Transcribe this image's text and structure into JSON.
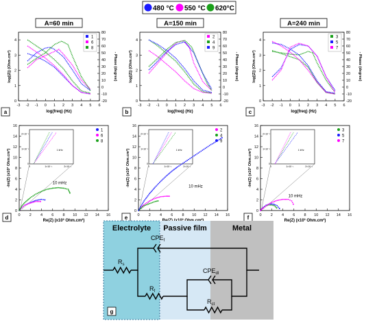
{
  "legend_top": [
    {
      "label": "480 °C",
      "color": "#1a1aff"
    },
    {
      "label": "550 °C",
      "color": "#ff00ff"
    },
    {
      "label": "620°C",
      "color": "#1aa01a"
    }
  ],
  "panel_titles": [
    "A=60 min",
    "A=150 min",
    "A=240 min"
  ],
  "panel_letters": [
    "a",
    "b",
    "c",
    "d",
    "e",
    "f",
    "g"
  ],
  "bode": {
    "xlabel": "log(freq) (Hz)",
    "ylabel": "log(|Z|) (Ohm.cm²)",
    "y2label": "- Phase (degree)",
    "xticks": [
      "-3",
      "-2",
      "-1",
      "0",
      "1",
      "2",
      "3",
      "4",
      "5",
      "6"
    ],
    "yticks": [
      "0",
      "1",
      "2",
      "3",
      "4"
    ],
    "y2ticks": [
      "-20",
      "-10",
      "0",
      "10",
      "20",
      "30",
      "40",
      "50",
      "60",
      "70",
      "80"
    ],
    "xlim": [
      -3,
      6
    ],
    "ylim": [
      0,
      4.5
    ],
    "y2lim": [
      -20,
      80
    ]
  },
  "nyquist": {
    "xlabel": "Re(Z) (x10³ Ohm.cm²)",
    "ylabel": "-Im(Z) (x10³ Ohm.cm²)",
    "xticks": [
      "0",
      "2",
      "4",
      "6",
      "8",
      "10",
      "12",
      "14",
      "16"
    ],
    "yticks": [
      "0",
      "2",
      "4",
      "6",
      "8",
      "10",
      "12",
      "14",
      "16"
    ],
    "xlim": [
      0,
      16
    ],
    "ylim": [
      0,
      16
    ],
    "inset_xticks": [
      "0",
      "1×10⁻¹",
      "2×10⁻¹"
    ],
    "inset_yticks": [
      "0",
      "1×10⁻¹",
      "2×10⁻¹"
    ],
    "inset_label": "1 kHz",
    "annotation": "10 mHz"
  },
  "chart_data": [
    {
      "type": "line",
      "panel": "a",
      "series": [
        {
          "name": "1",
          "color": "#1a1aff",
          "mod": [
            [
              -2,
              3.1
            ],
            [
              -1,
              2.9
            ],
            [
              0,
              2.6
            ],
            [
              1,
              2.2
            ],
            [
              2,
              1.6
            ],
            [
              3,
              1.0
            ],
            [
              4,
              0.55
            ],
            [
              5,
              0.45
            ]
          ],
          "phase": [
            [
              -2,
              38
            ],
            [
              -1,
              50
            ],
            [
              0,
              57
            ],
            [
              0.5,
              58
            ],
            [
              1,
              55
            ],
            [
              2,
              44
            ],
            [
              3,
              25
            ],
            [
              4,
              5
            ],
            [
              5,
              -5
            ]
          ]
        },
        {
          "name": "6",
          "color": "#ff00ff",
          "mod": [
            [
              -2,
              3.6
            ],
            [
              -1,
              3.2
            ],
            [
              0,
              2.8
            ],
            [
              1,
              2.3
            ],
            [
              2,
              1.7
            ],
            [
              3,
              1.0
            ],
            [
              4,
              0.55
            ],
            [
              5,
              0.45
            ]
          ],
          "phase": [
            [
              -2,
              28
            ],
            [
              -1,
              40
            ],
            [
              0,
              46
            ],
            [
              1,
              52
            ],
            [
              1.5,
              55
            ],
            [
              2,
              48
            ],
            [
              3,
              32
            ],
            [
              4,
              10
            ],
            [
              5,
              -3
            ]
          ]
        },
        {
          "name": "8",
          "color": "#1aa01a",
          "mod": [
            [
              -2,
              4.0
            ],
            [
              -1,
              3.6
            ],
            [
              0,
              3.2
            ],
            [
              1,
              2.7
            ],
            [
              2,
              2.1
            ],
            [
              3,
              1.3
            ],
            [
              4,
              0.65
            ],
            [
              5,
              0.5
            ]
          ],
          "phase": [
            [
              -2,
              33
            ],
            [
              -1,
              42
            ],
            [
              0,
              50
            ],
            [
              1,
              62
            ],
            [
              1.8,
              67
            ],
            [
              2.5,
              62
            ],
            [
              3,
              45
            ],
            [
              4,
              15
            ],
            [
              5,
              -5
            ]
          ]
        }
      ]
    },
    {
      "type": "line",
      "panel": "b",
      "series": [
        {
          "name": "2",
          "color": "#ff00ff",
          "mod": [
            [
              -2,
              3.3
            ],
            [
              -1,
              2.9
            ],
            [
              0,
              2.4
            ],
            [
              1,
              1.9
            ],
            [
              2,
              1.3
            ],
            [
              3,
              0.8
            ],
            [
              4,
              0.55
            ],
            [
              5,
              0.5
            ]
          ],
          "phase": [
            [
              -2,
              20
            ],
            [
              -1,
              35
            ],
            [
              0,
              50
            ],
            [
              1,
              64
            ],
            [
              1.8,
              68
            ],
            [
              2.5,
              58
            ],
            [
              3,
              35
            ],
            [
              4,
              8
            ],
            [
              5,
              -5
            ]
          ]
        },
        {
          "name": "4",
          "color": "#1aa01a",
          "mod": [
            [
              -2,
              4.0
            ],
            [
              -1,
              3.6
            ],
            [
              0,
              3.1
            ],
            [
              1,
              2.6
            ],
            [
              2,
              1.9
            ],
            [
              3,
              1.1
            ],
            [
              4,
              0.6
            ],
            [
              5,
              0.5
            ]
          ],
          "phase": [
            [
              -2,
              30
            ],
            [
              -1,
              42
            ],
            [
              0,
              55
            ],
            [
              1,
              65
            ],
            [
              2,
              68
            ],
            [
              2.8,
              58
            ],
            [
              3.5,
              35
            ],
            [
              4.5,
              5
            ],
            [
              5,
              -5
            ]
          ]
        },
        {
          "name": "9",
          "color": "#1a1aff",
          "mod": [
            [
              -2,
              4.0
            ],
            [
              -1,
              3.7
            ],
            [
              0,
              3.3
            ],
            [
              1,
              2.8
            ],
            [
              2,
              2.1
            ],
            [
              3,
              1.3
            ],
            [
              4,
              0.7
            ],
            [
              5,
              0.55
            ]
          ],
          "phase": [
            [
              -2,
              25
            ],
            [
              -1,
              38
            ],
            [
              0,
              52
            ],
            [
              1,
              62
            ],
            [
              2,
              66
            ],
            [
              3,
              50
            ],
            [
              4,
              20
            ],
            [
              5,
              -3
            ]
          ]
        }
      ]
    },
    {
      "type": "line",
      "panel": "c",
      "series": [
        {
          "name": "3",
          "color": "#1aa01a",
          "mod": [
            [
              -2,
              3.3
            ],
            [
              -1,
              3.1
            ],
            [
              0,
              2.9
            ],
            [
              1,
              2.7
            ],
            [
              2,
              2.2
            ],
            [
              3,
              1.2
            ],
            [
              4,
              0.55
            ],
            [
              5,
              0.45
            ]
          ],
          "phase": [
            [
              -2,
              52
            ],
            [
              -1,
              50
            ],
            [
              0,
              48
            ],
            [
              1,
              47
            ],
            [
              2,
              52
            ],
            [
              2.5,
              50
            ],
            [
              3,
              35
            ],
            [
              4,
              10
            ],
            [
              5,
              -8
            ]
          ]
        },
        {
          "name": "5",
          "color": "#1a1aff",
          "mod": [
            [
              -2,
              3.8
            ],
            [
              -1,
              3.7
            ],
            [
              0,
              3.4
            ],
            [
              1,
              3.0
            ],
            [
              2,
              2.3
            ],
            [
              3,
              1.3
            ],
            [
              4,
              0.6
            ],
            [
              5,
              0.5
            ]
          ],
          "phase": [
            [
              -2,
              15
            ],
            [
              -1,
              28
            ],
            [
              0,
              55
            ],
            [
              1,
              62
            ],
            [
              2,
              60
            ],
            [
              3,
              45
            ],
            [
              4,
              15
            ],
            [
              5,
              -5
            ]
          ]
        },
        {
          "name": "7",
          "color": "#ff00ff",
          "mod": [
            [
              -2,
              3.9
            ],
            [
              -1,
              3.6
            ],
            [
              0,
              3.2
            ],
            [
              1,
              2.7
            ],
            [
              2,
              2.0
            ],
            [
              3,
              1.2
            ],
            [
              4,
              0.55
            ],
            [
              5,
              0.45
            ]
          ],
          "phase": [
            [
              -2,
              10
            ],
            [
              -1,
              25
            ],
            [
              0,
              58
            ],
            [
              1,
              64
            ],
            [
              2,
              60
            ],
            [
              3,
              45
            ],
            [
              4,
              15
            ],
            [
              5,
              -8
            ]
          ]
        }
      ]
    },
    {
      "type": "scatter",
      "panel": "d",
      "series": [
        {
          "name": "1",
          "color": "#1a1aff",
          "points": [
            [
              0,
              0
            ],
            [
              0.5,
              0.6
            ],
            [
              1,
              1.0
            ],
            [
              2,
              1.5
            ],
            [
              3,
              1.9
            ],
            [
              4,
              2.1
            ],
            [
              4.6,
              2.0
            ]
          ]
        },
        {
          "name": "6",
          "color": "#ff00ff",
          "points": [
            [
              0,
              0
            ],
            [
              0.5,
              0.6
            ],
            [
              1,
              1.0
            ],
            [
              2,
              1.4
            ],
            [
              3,
              1.7
            ],
            [
              3.8,
              1.7
            ]
          ]
        },
        {
          "name": "8",
          "color": "#1aa01a",
          "points": [
            [
              0,
              0
            ],
            [
              0.5,
              0.9
            ],
            [
              1,
              1.5
            ],
            [
              2,
              2.4
            ],
            [
              3,
              3.1
            ],
            [
              4,
              3.6
            ],
            [
              5,
              4.0
            ],
            [
              6,
              4.2
            ],
            [
              7,
              4.3
            ],
            [
              8,
              4.2
            ],
            [
              8.8,
              4.0
            ],
            [
              9.1,
              3.3
            ]
          ]
        }
      ]
    },
    {
      "type": "scatter",
      "panel": "e",
      "series": [
        {
          "name": "2",
          "color": "#ff00ff",
          "points": [
            [
              0,
              0
            ],
            [
              0.5,
              0.6
            ],
            [
              1,
              1.1
            ],
            [
              2,
              1.8
            ],
            [
              3,
              2.3
            ],
            [
              4,
              2.6
            ],
            [
              5,
              2.7
            ],
            [
              5.5,
              2.7
            ]
          ]
        },
        {
          "name": "4",
          "color": "#1aa01a",
          "points": [
            [
              0,
              0
            ],
            [
              0.5,
              0.5
            ],
            [
              1,
              0.9
            ],
            [
              2,
              1.3
            ],
            [
              3,
              1.7
            ],
            [
              3.5,
              1.8
            ]
          ]
        },
        {
          "name": "9",
          "color": "#1a1aff",
          "points": [
            [
              0,
              0
            ],
            [
              1,
              1.8
            ],
            [
              2,
              3.2
            ],
            [
              3,
              4.4
            ],
            [
              4,
              5.5
            ],
            [
              5,
              6.5
            ],
            [
              6,
              7.4
            ],
            [
              7,
              8.2
            ],
            [
              8,
              8.9
            ],
            [
              9,
              9.6
            ],
            [
              10,
              10.3
            ],
            [
              11,
              11.0
            ],
            [
              12,
              11.7
            ],
            [
              13,
              12.4
            ],
            [
              14,
              13.0
            ],
            [
              15,
              13.7
            ]
          ]
        }
      ]
    },
    {
      "type": "scatter",
      "panel": "f",
      "series": [
        {
          "name": "3",
          "color": "#1aa01a",
          "points": [
            [
              0,
              0
            ],
            [
              0.5,
              0.6
            ],
            [
              1,
              0.9
            ],
            [
              1.5,
              1.05
            ],
            [
              2,
              1.05
            ],
            [
              2.5,
              0.9
            ],
            [
              2.9,
              0.5
            ]
          ]
        },
        {
          "name": "5",
          "color": "#1a1aff",
          "points": [
            [
              0,
              0
            ],
            [
              0.5,
              0.6
            ],
            [
              1,
              1.0
            ],
            [
              1.5,
              1.2
            ],
            [
              2,
              1.25
            ],
            [
              2.5,
              1.15
            ],
            [
              3,
              0.9
            ],
            [
              3.4,
              0.4
            ]
          ]
        },
        {
          "name": "7",
          "color": "#ff00ff",
          "points": [
            [
              0,
              0
            ],
            [
              0.5,
              0.5
            ],
            [
              1,
              0.9
            ],
            [
              2,
              1.5
            ],
            [
              3,
              1.9
            ],
            [
              4,
              2.1
            ],
            [
              5,
              2.1
            ],
            [
              5.6,
              1.8
            ],
            [
              5.9,
              1.2
            ]
          ]
        }
      ]
    }
  ],
  "circuit": {
    "regions": [
      {
        "label": "Electrolyte",
        "color": "#8fd1e0"
      },
      {
        "label": "Passive film",
        "color": "#d6e8f5"
      },
      {
        "label": "Metal",
        "color": "#c0c0c0"
      }
    ],
    "components": {
      "rs": "R",
      "rs_sub": "s",
      "cpef": "CPE",
      "cpef_sub": "f",
      "rf": "R",
      "rf_sub": "f",
      "cpedl": "CPE",
      "cpedl_sub": "dl",
      "rct": "R",
      "rct_sub": "ct"
    }
  }
}
